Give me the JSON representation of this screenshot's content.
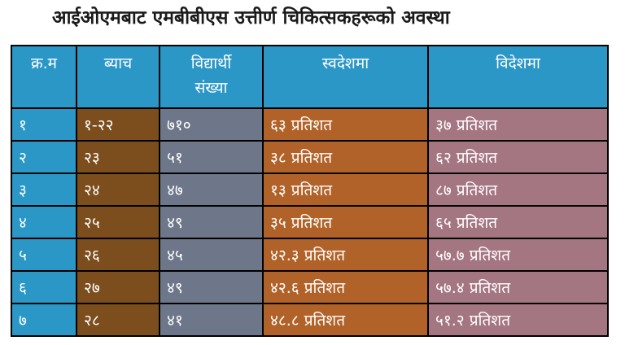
{
  "title": "आईओएमबाट एमबीबीएस उत्तीर्ण चिकित्सकहरूको अवस्था",
  "table": {
    "headers": {
      "sn": "क्र.म",
      "batch": "ब्याच",
      "students_line1": "विद्यार्थी",
      "students_line2": "संख्या",
      "domestic": "स्वदेशमा",
      "abroad": "विदेशमा"
    },
    "rows": [
      {
        "sn": "१",
        "batch": "१-२२",
        "students": "७१०",
        "domestic": "६३  प्रतिशत",
        "abroad": "३७  प्रतिशत"
      },
      {
        "sn": "२",
        "batch": "२३",
        "students": "५१",
        "domestic": "३८  प्रतिशत",
        "abroad": "६२  प्रतिशत"
      },
      {
        "sn": "३",
        "batch": "२४",
        "students": "४७",
        "domestic": "१३    प्रतिशत",
        "abroad": "८७  प्रतिशत"
      },
      {
        "sn": "४",
        "batch": "२५",
        "students": "४९",
        "domestic": "३५    प्रतिशत",
        "abroad": "६५  प्रतिशत"
      },
      {
        "sn": "५",
        "batch": "२६",
        "students": "४५",
        "domestic": "४२.३ प्रतिशत",
        "abroad": "५७.७ प्रतिशत"
      },
      {
        "sn": "६",
        "batch": "२७",
        "students": "४९",
        "domestic": "४२.६ प्रतिशत",
        "abroad": "५७.४ प्रतिशत"
      },
      {
        "sn": "७",
        "batch": "२८",
        "students": "४१",
        "domestic": "४८.८ प्रतिशत",
        "abroad": "५१.२ प्रतिशत"
      }
    ]
  },
  "colors": {
    "header": "#2b97c6",
    "sn_column": "#2b97c6",
    "batch_column": "#7c4d1d",
    "students_column": "#6e778a",
    "domestic_column": "#b16228",
    "abroad_column": "#a47682"
  }
}
